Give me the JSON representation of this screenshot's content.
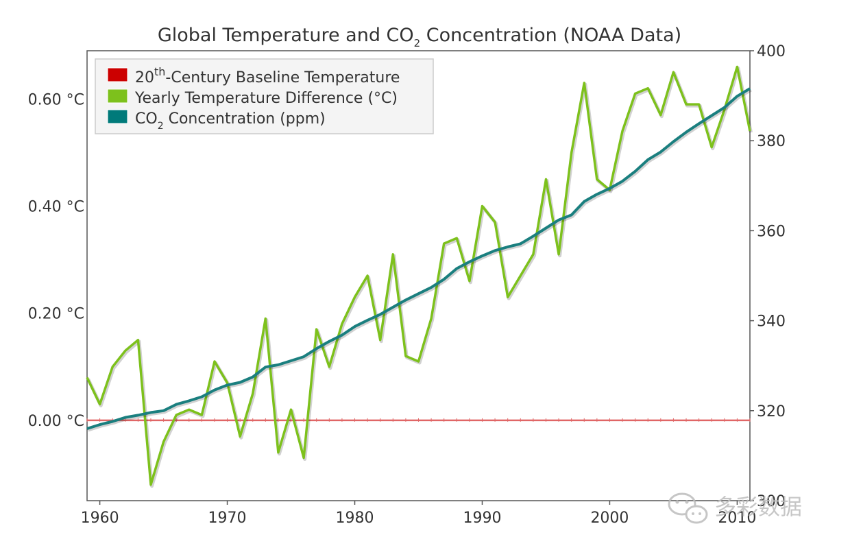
{
  "chart_data": {
    "type": "line",
    "title": {
      "prefix": "Global Temperature and CO",
      "subscript": "2",
      "suffix": " Concentration (NOAA Data)"
    },
    "xlabel": "",
    "ylabel_left": "",
    "ylabel_right": "",
    "x_ticks": [
      "1960",
      "1970",
      "1980",
      "1990",
      "2000",
      "2010"
    ],
    "x_tick_values": [
      1960,
      1970,
      1980,
      1990,
      2000,
      2010
    ],
    "xlim": [
      1959,
      2011
    ],
    "y_left_ticks": [
      "0.00 °C",
      "0.20 °C",
      "0.40 °C",
      "0.60 °C"
    ],
    "y_left_tick_values": [
      0.0,
      0.2,
      0.4,
      0.6
    ],
    "y_left_lim": [
      -0.15,
      0.69
    ],
    "y_right_ticks": [
      "300",
      "320",
      "340",
      "360",
      "380",
      "400"
    ],
    "y_right_tick_values": [
      300,
      320,
      340,
      360,
      380,
      400
    ],
    "y_right_lim": [
      300,
      400
    ],
    "grid": false,
    "legend": {
      "placement": "top-left",
      "items": [
        {
          "label_main": "20",
          "label_sup": "th",
          "label_rest": "-Century Baseline Temperature",
          "color": "#cc0000"
        },
        {
          "label_main": "Yearly Temperature Difference (°C)",
          "label_sup": "",
          "label_rest": "",
          "color": "#7dc11c"
        },
        {
          "label_main": "CO",
          "label_sub": "2",
          "label_rest": " Concentration (ppm)",
          "color": "#007a7a"
        }
      ]
    },
    "series": [
      {
        "name": "20th-Century Baseline Temperature",
        "axis": "left",
        "color": "#e06666",
        "x": [
          1959,
          2011
        ],
        "values": [
          0.0,
          0.0
        ]
      },
      {
        "name": "Yearly Temperature Difference (°C)",
        "axis": "left",
        "color": "#7dc11c",
        "x": [
          1959,
          1960,
          1961,
          1962,
          1963,
          1964,
          1965,
          1966,
          1967,
          1968,
          1969,
          1970,
          1971,
          1972,
          1973,
          1974,
          1975,
          1976,
          1977,
          1978,
          1979,
          1980,
          1981,
          1982,
          1983,
          1984,
          1985,
          1986,
          1987,
          1988,
          1989,
          1990,
          1991,
          1992,
          1993,
          1994,
          1995,
          1996,
          1997,
          1998,
          1999,
          2000,
          2001,
          2002,
          2003,
          2004,
          2005,
          2006,
          2007,
          2008,
          2009,
          2010,
          2011
        ],
        "values": [
          0.08,
          0.03,
          0.1,
          0.13,
          0.15,
          -0.12,
          -0.04,
          0.01,
          0.02,
          0.01,
          0.11,
          0.07,
          -0.03,
          0.05,
          0.19,
          -0.06,
          0.02,
          -0.07,
          0.17,
          0.1,
          0.18,
          0.23,
          0.27,
          0.15,
          0.31,
          0.12,
          0.11,
          0.19,
          0.33,
          0.34,
          0.26,
          0.4,
          0.37,
          0.23,
          0.27,
          0.31,
          0.45,
          0.31,
          0.5,
          0.63,
          0.45,
          0.43,
          0.54,
          0.61,
          0.62,
          0.57,
          0.65,
          0.59,
          0.59,
          0.51,
          0.58,
          0.66,
          0.54
        ]
      },
      {
        "name": "CO2 Concentration (ppm)",
        "axis": "right",
        "color": "#1a7f7f",
        "x": [
          1959,
          1960,
          1961,
          1962,
          1963,
          1964,
          1965,
          1966,
          1967,
          1968,
          1969,
          1970,
          1971,
          1972,
          1973,
          1974,
          1975,
          1976,
          1977,
          1978,
          1979,
          1980,
          1981,
          1982,
          1983,
          1984,
          1985,
          1986,
          1987,
          1988,
          1989,
          1990,
          1991,
          1992,
          1993,
          1994,
          1995,
          1996,
          1997,
          1998,
          1999,
          2000,
          2001,
          2002,
          2003,
          2004,
          2005,
          2006,
          2007,
          2008,
          2009,
          2010,
          2011
        ],
        "values": [
          316.0,
          316.9,
          317.6,
          318.5,
          319.0,
          319.6,
          320.0,
          321.4,
          322.2,
          323.1,
          324.6,
          325.7,
          326.3,
          327.5,
          329.7,
          330.2,
          331.1,
          332.0,
          333.8,
          335.4,
          336.8,
          338.7,
          340.1,
          341.4,
          343.0,
          344.6,
          346.0,
          347.4,
          349.2,
          351.6,
          353.1,
          354.4,
          355.6,
          356.4,
          357.1,
          358.8,
          360.6,
          362.4,
          363.5,
          366.5,
          368.1,
          369.4,
          371.0,
          373.2,
          375.8,
          377.5,
          379.8,
          381.9,
          383.8,
          385.6,
          387.4,
          389.9,
          391.6
        ]
      }
    ]
  },
  "watermark": {
    "text": "多彩数据",
    "icon": "wechat-icon"
  }
}
